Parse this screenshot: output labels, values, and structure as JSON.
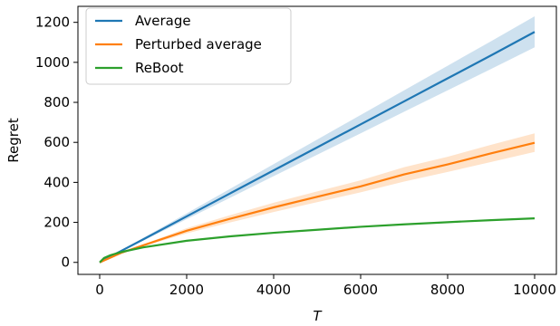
{
  "chart_data": {
    "type": "line",
    "xlabel": "T",
    "ylabel": "Regret",
    "xlim": [
      -500,
      10500
    ],
    "ylim": [
      -60,
      1280
    ],
    "xticks": [
      0,
      2000,
      4000,
      6000,
      8000,
      10000
    ],
    "yticks": [
      0,
      200,
      400,
      600,
      800,
      1000,
      1200
    ],
    "grid": false,
    "legend_position": "top-left",
    "series": [
      {
        "name": "Average",
        "color": "#1f77b4",
        "x": [
          0,
          500,
          1000,
          2000,
          3000,
          4000,
          5000,
          6000,
          7000,
          8000,
          9000,
          10000
        ],
        "y": [
          0,
          58,
          115,
          230,
          345,
          460,
          575,
          690,
          805,
          920,
          1035,
          1152
        ],
        "band_lower": [
          0,
          55,
          108,
          216,
          323,
          431,
          538,
          645,
          753,
          860,
          967,
          1075
        ],
        "band_upper": [
          0,
          61,
          122,
          245,
          368,
          491,
          614,
          737,
          860,
          983,
          1106,
          1230
        ]
      },
      {
        "name": "Perturbed average",
        "color": "#ff7f0e",
        "x": [
          0,
          500,
          1000,
          2000,
          3000,
          4000,
          5000,
          6000,
          7000,
          8000,
          9000,
          10000
        ],
        "y": [
          0,
          48,
          85,
          158,
          218,
          275,
          328,
          380,
          440,
          490,
          545,
          598
        ],
        "band_lower": [
          0,
          45,
          80,
          145,
          200,
          252,
          301,
          350,
          404,
          452,
          502,
          552
        ],
        "band_upper": [
          0,
          51,
          90,
          171,
          236,
          298,
          355,
          410,
          476,
          528,
          588,
          645
        ]
      },
      {
        "name": "ReBoot",
        "color": "#2ca02c",
        "x": [
          0,
          100,
          250,
          500,
          1000,
          2000,
          3000,
          4000,
          5000,
          6000,
          7000,
          8000,
          9000,
          10000
        ],
        "y": [
          0,
          22,
          36,
          52,
          75,
          108,
          130,
          148,
          163,
          178,
          190,
          201,
          211,
          220
        ],
        "band_lower": [
          0,
          21,
          35,
          51,
          73,
          105,
          127,
          145,
          160,
          175,
          187,
          198,
          208,
          217
        ],
        "band_upper": [
          0,
          23,
          37,
          53,
          77,
          111,
          133,
          151,
          166,
          181,
          193,
          204,
          214,
          223
        ]
      }
    ]
  }
}
